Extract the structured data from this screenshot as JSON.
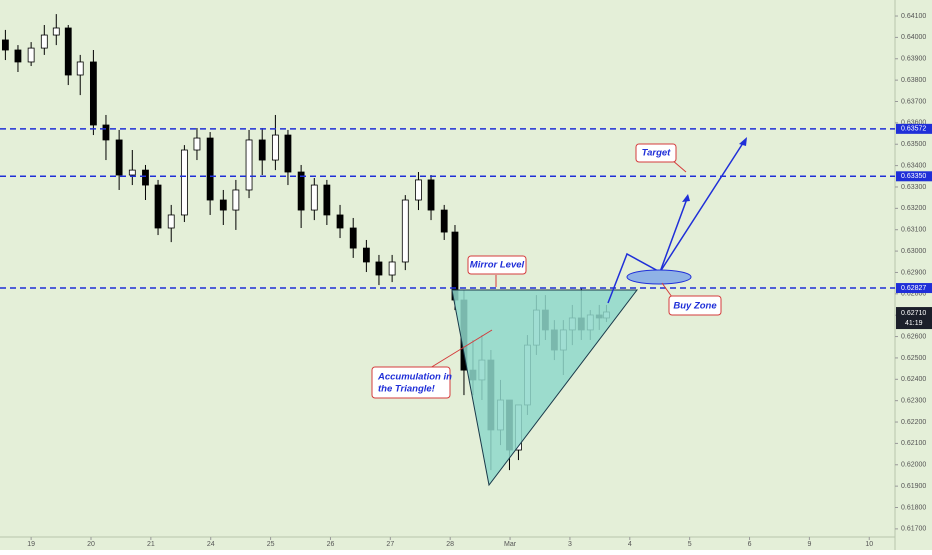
{
  "chart_data": {
    "type": "candlestick",
    "x": [
      -0.43,
      -0.22,
      0,
      0.22,
      0.42,
      0.62,
      0.82,
      1.04,
      1.25,
      1.47,
      1.69,
      1.91,
      2.12,
      2.34,
      2.56,
      2.77,
      2.99,
      3.21,
      3.42,
      3.64,
      3.86,
      4.08,
      4.29,
      4.51,
      4.73,
      4.94,
      5.16,
      5.38,
      5.6,
      5.81,
      6.03,
      6.25,
      6.47,
      6.68,
      6.9,
      7.08,
      7.23,
      7.38,
      7.53,
      7.68,
      7.84,
      7.99,
      8.14,
      8.29,
      8.44,
      8.59,
      8.74,
      8.89,
      9.04,
      9.19,
      9.34,
      9.49,
      9.61
    ],
    "open": [
      0.63988,
      0.63941,
      0.63885,
      0.6395,
      0.64011,
      0.64044,
      0.63824,
      0.63885,
      0.6359,
      0.6352,
      0.63356,
      0.63379,
      0.63309,
      0.63108,
      0.63169,
      0.63473,
      0.63529,
      0.63239,
      0.63192,
      0.63286,
      0.6352,
      0.63426,
      0.63543,
      0.6337,
      0.63192,
      0.63309,
      0.63169,
      0.63108,
      0.63014,
      0.62949,
      0.62888,
      0.62949,
      0.63239,
      0.63333,
      0.63192,
      0.63089,
      0.62771,
      0.62443,
      0.62397,
      0.6249,
      0.62163,
      0.62303,
      0.62069,
      0.6228,
      0.6256,
      0.62724,
      0.62631,
      0.62537,
      0.62631,
      0.62687,
      0.62631,
      0.62701,
      0.62687
    ],
    "high": [
      0.64035,
      0.63964,
      0.63978,
      0.64058,
      0.64109,
      0.64058,
      0.63918,
      0.63941,
      0.63637,
      0.63567,
      0.63473,
      0.63403,
      0.63333,
      0.63216,
      0.63496,
      0.63576,
      0.63557,
      0.63286,
      0.63333,
      0.63567,
      0.63576,
      0.63637,
      0.63567,
      0.63403,
      0.63342,
      0.63333,
      0.63216,
      0.63155,
      0.63052,
      0.62982,
      0.62982,
      0.63262,
      0.6337,
      0.63356,
      0.63216,
      0.63122,
      0.62818,
      0.62584,
      0.62607,
      0.62537,
      0.62397,
      0.6228,
      0.6228,
      0.62607,
      0.62794,
      0.62794,
      0.62677,
      0.62677,
      0.62748,
      0.62827,
      0.62724,
      0.62748,
      0.62748
    ],
    "low": [
      0.63894,
      0.63838,
      0.63866,
      0.63918,
      0.63964,
      0.63777,
      0.6373,
      0.63543,
      0.63426,
      0.63286,
      0.63309,
      0.63239,
      0.63075,
      0.63042,
      0.63136,
      0.63426,
      0.63169,
      0.63122,
      0.63099,
      0.63248,
      0.63356,
      0.63379,
      0.63309,
      0.63108,
      0.63145,
      0.63122,
      0.63061,
      0.62968,
      0.62902,
      0.62841,
      0.62855,
      0.62911,
      0.63192,
      0.63145,
      0.63052,
      0.62724,
      0.62326,
      0.62326,
      0.62303,
      0.61975,
      0.62092,
      0.61975,
      0.62022,
      0.62233,
      0.62514,
      0.62584,
      0.6249,
      0.6242,
      0.6256,
      0.62584,
      0.62584,
      0.62631,
      0.62668
    ],
    "close": [
      0.63941,
      0.63885,
      0.6395,
      0.64011,
      0.64044,
      0.63824,
      0.63885,
      0.6359,
      0.6352,
      0.63356,
      0.63379,
      0.63309,
      0.63108,
      0.63169,
      0.63473,
      0.63529,
      0.63239,
      0.63192,
      0.63286,
      0.6352,
      0.63426,
      0.63543,
      0.6337,
      0.63192,
      0.63309,
      0.63169,
      0.63108,
      0.63014,
      0.62949,
      0.62888,
      0.62949,
      0.63239,
      0.63333,
      0.63192,
      0.63089,
      0.62771,
      0.62443,
      0.62397,
      0.6249,
      0.62163,
      0.62303,
      0.62069,
      0.6228,
      0.6256,
      0.62724,
      0.62631,
      0.62537,
      0.62631,
      0.62687,
      0.62631,
      0.62701,
      0.62687,
      0.62715
    ],
    "up_color": "#ffffff",
    "down_color": "#000000",
    "wick_color": "#000000",
    "background": "#e4efd8",
    "xlim": [
      -0.52,
      14.43
    ],
    "xticks": [
      {
        "value": 0,
        "label": "19"
      },
      {
        "value": 1,
        "label": "20"
      },
      {
        "value": 2,
        "label": "21"
      },
      {
        "value": 3,
        "label": "24"
      },
      {
        "value": 4,
        "label": "25"
      },
      {
        "value": 5,
        "label": "26"
      },
      {
        "value": 6,
        "label": "27"
      },
      {
        "value": 7,
        "label": "28"
      },
      {
        "value": 8,
        "label": "Mar"
      },
      {
        "value": 9,
        "label": "3"
      },
      {
        "value": 10,
        "label": "4"
      },
      {
        "value": 11,
        "label": "5"
      },
      {
        "value": 12,
        "label": "6"
      },
      {
        "value": 13,
        "label": "9"
      },
      {
        "value": 14,
        "label": "10"
      }
    ],
    "ylim": [
      0.61662,
      0.64175
    ],
    "yticks": [
      {
        "value": 0.617,
        "label": "0.61700"
      },
      {
        "value": 0.618,
        "label": "0.61800"
      },
      {
        "value": 0.619,
        "label": "0.61900"
      },
      {
        "value": 0.62,
        "label": "0.62000"
      },
      {
        "value": 0.621,
        "label": "0.62100"
      },
      {
        "value": 0.622,
        "label": "0.62200"
      },
      {
        "value": 0.623,
        "label": "0.62300"
      },
      {
        "value": 0.624,
        "label": "0.62400"
      },
      {
        "value": 0.625,
        "label": "0.62500"
      },
      {
        "value": 0.626,
        "label": "0.62600"
      },
      {
        "value": 0.627,
        "label": "0.62700"
      },
      {
        "value": 0.628,
        "label": "0.62800"
      },
      {
        "value": 0.629,
        "label": "0.62900"
      },
      {
        "value": 0.63,
        "label": "0.63000"
      },
      {
        "value": 0.631,
        "label": "0.63100"
      },
      {
        "value": 0.632,
        "label": "0.63200"
      },
      {
        "value": 0.633,
        "label": "0.63300"
      },
      {
        "value": 0.634,
        "label": "0.63400"
      },
      {
        "value": 0.635,
        "label": "0.63500"
      },
      {
        "value": 0.636,
        "label": "0.63600"
      },
      {
        "value": 0.637,
        "label": "0.63700"
      },
      {
        "value": 0.638,
        "label": "0.63800"
      },
      {
        "value": 0.639,
        "label": "0.63900"
      },
      {
        "value": 0.64,
        "label": "0.64000"
      },
      {
        "value": 0.641,
        "label": "0.64100"
      }
    ],
    "levels": [
      {
        "value": 0.63572,
        "label": "0.63572"
      },
      {
        "value": 0.6335,
        "label": "0.63350"
      },
      {
        "value": 0.62827,
        "label": "0.62827"
      }
    ],
    "level_color": "#1f2fd8",
    "last_price": {
      "value": 0.6271,
      "label": "0.62710"
    },
    "countdown": "41:19",
    "annotations": {
      "mirror": "Mirror Level",
      "accumulation": [
        "Accumulation in",
        "the Triangle!"
      ],
      "target": "Target",
      "buy_zone": "Buy Zone"
    }
  }
}
